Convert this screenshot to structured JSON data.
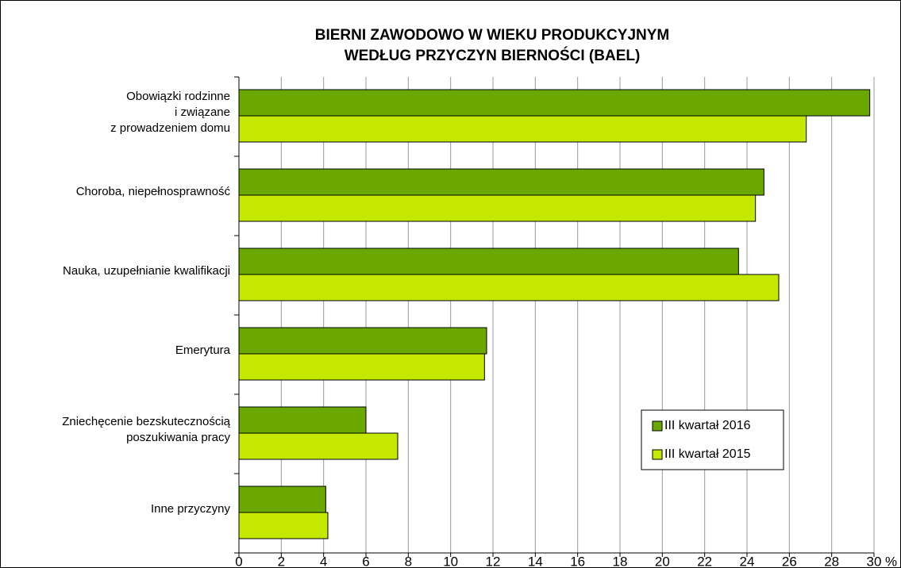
{
  "chart_data": {
    "type": "hbar",
    "title": "BIERNI ZAWODOWO W WIEKU PRODUKCYJNYM\nWEDŁUG PRZYCZYN BIERNOŚCI (BAEL)",
    "categories": [
      "Obowiązki rodzinne\ni związane\nz prowadzeniem domu",
      "Choroba, niepełnosprawność",
      "Nauka, uzupełnianie kwalifikacji",
      "Emerytura",
      "Zniechęcenie bezskutecznością\nposzukiwania pracy",
      "Inne przyczyny"
    ],
    "series": [
      {
        "name": "III kwartał 2016",
        "color": "#6aa800",
        "values": [
          29.8,
          24.8,
          23.6,
          11.7,
          6.0,
          4.1
        ]
      },
      {
        "name": "III kwartał 2015",
        "color": "#c4e800",
        "values": [
          26.8,
          24.4,
          25.5,
          11.6,
          7.5,
          4.2
        ]
      }
    ],
    "x_unit": "%",
    "xlim": [
      0,
      30
    ],
    "xticks": [
      0,
      2,
      4,
      6,
      8,
      10,
      12,
      14,
      16,
      18,
      20,
      22,
      24,
      26,
      28,
      30
    ],
    "grid": true,
    "legend": "lower right"
  }
}
